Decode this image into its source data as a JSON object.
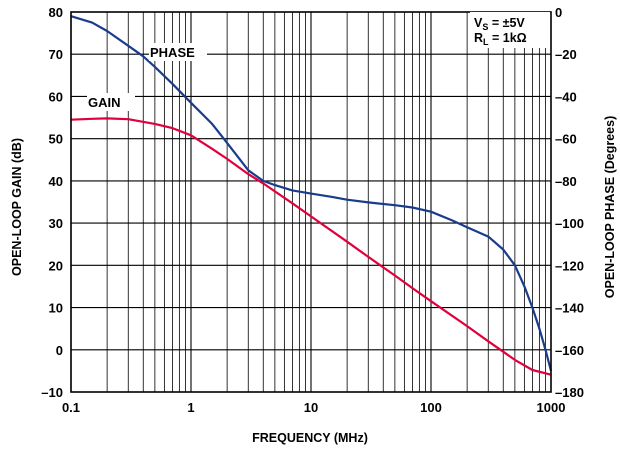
{
  "chart_data": {
    "type": "line",
    "xlabel": "FREQUENCY (MHz)",
    "ylabel_left": "OPEN-LOOP GAIN (dB)",
    "ylabel_right": "OPEN-LOOP PHASE (Degrees)",
    "x_scale": "log",
    "xlim": [
      0.1,
      1000
    ],
    "ylim_left": [
      -10,
      80
    ],
    "ylim_right": [
      -180,
      0
    ],
    "x_ticks": [
      "0.1",
      "1",
      "10",
      "100",
      "1000"
    ],
    "y_left_ticks": [
      "80",
      "70",
      "60",
      "50",
      "40",
      "30",
      "20",
      "10",
      "0",
      "–10"
    ],
    "y_right_ticks": [
      "0",
      "–20",
      "–40",
      "–60",
      "–80",
      "–100",
      "–120",
      "–140",
      "–160",
      "–180"
    ],
    "grid": true,
    "conditions": {
      "vs_main": "V",
      "vs_sub": "S",
      "vs_value": " = ±5V",
      "rl_main": "R",
      "rl_sub": "L",
      "rl_value": " = 1kΩ"
    },
    "series": [
      {
        "name": "GAIN",
        "axis": "left",
        "color": "#e0003c",
        "x": [
          0.1,
          0.15,
          0.2,
          0.3,
          0.5,
          0.7,
          1,
          1.5,
          2,
          3,
          4,
          5,
          7,
          10,
          20,
          30,
          50,
          70,
          100,
          200,
          300,
          500,
          700,
          1000
        ],
        "y": [
          54.5,
          54.7,
          54.8,
          54.6,
          53.5,
          52.5,
          50.8,
          47.6,
          45.2,
          41.6,
          39.4,
          37.5,
          34.7,
          31.6,
          25.6,
          22.0,
          17.6,
          14.6,
          11.5,
          5.6,
          2.0,
          -2.4,
          -4.8,
          -5.9
        ]
      },
      {
        "name": "PHASE",
        "axis": "right",
        "color": "#1a3c8c",
        "x": [
          0.1,
          0.15,
          0.2,
          0.3,
          0.4,
          0.5,
          0.7,
          1,
          1.5,
          2,
          3,
          4,
          5,
          7,
          10,
          15,
          20,
          30,
          50,
          70,
          100,
          150,
          200,
          300,
          400,
          500,
          600,
          700,
          800,
          900,
          1000
        ],
        "y": [
          -2,
          -5,
          -9,
          -16,
          -21,
          -26,
          -34,
          -43,
          -53,
          -62,
          -75,
          -80,
          -82,
          -84.5,
          -86,
          -87.6,
          -88.9,
          -90.2,
          -91.5,
          -92.6,
          -94.6,
          -98.7,
          -102,
          -106.4,
          -112.5,
          -120,
          -130,
          -140,
          -150,
          -160,
          -170
        ]
      }
    ]
  }
}
